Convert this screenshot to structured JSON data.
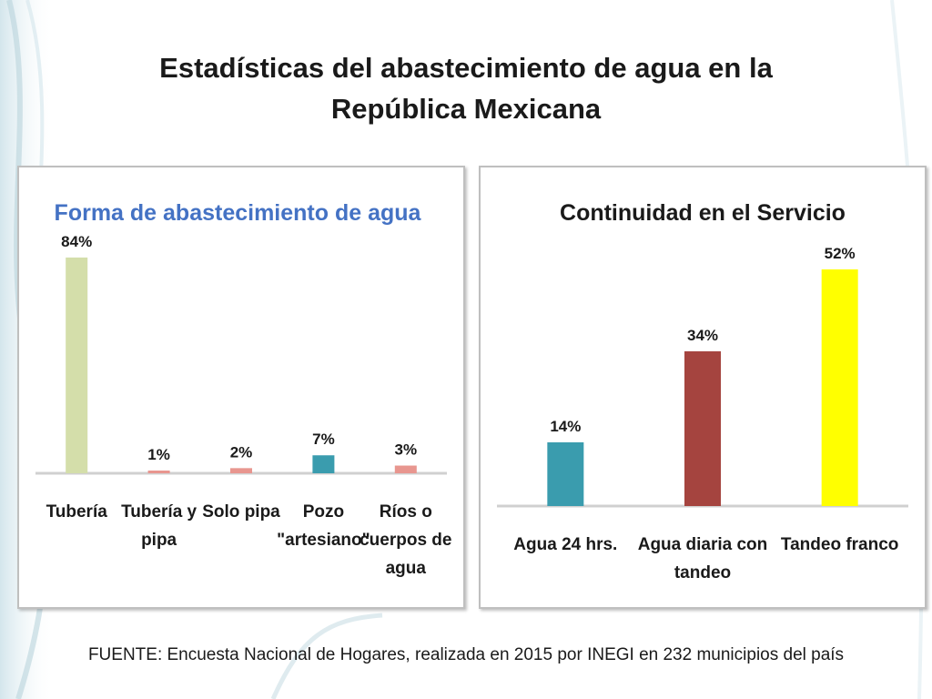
{
  "slide": {
    "title_line1": "Estadísticas del abastecimiento de agua en la",
    "title_line2": "República Mexicana",
    "source": "FUENTE: Encuesta Nacional de Hogares, realizada en 2015 por INEGI en 232 municipios del país"
  },
  "chart_data": [
    {
      "type": "bar",
      "title": "Forma de abastecimiento de agua",
      "title_color": "#4472c4",
      "categories": [
        [
          "Tubería"
        ],
        [
          "Tubería y",
          "pipa"
        ],
        [
          "Solo pipa"
        ],
        [
          "Pozo",
          "\"artesiano\""
        ],
        [
          "Ríos o",
          "cuerpos de",
          "agua"
        ]
      ],
      "values": [
        84,
        1,
        2,
        7,
        3
      ],
      "value_labels": [
        "84%",
        "1%",
        "2%",
        "7%",
        "3%"
      ],
      "colors": [
        "#d4deaa",
        "#e8968f",
        "#e8968f",
        "#3a9cae",
        "#e8968f"
      ],
      "ylim": [
        0,
        90
      ],
      "grid": false,
      "legend": "none"
    },
    {
      "type": "bar",
      "title": "Continuidad en el Servicio",
      "categories": [
        [
          "Agua 24 hrs."
        ],
        [
          "Agua diaria con",
          "tandeo"
        ],
        [
          "Tandeo franco"
        ]
      ],
      "values": [
        14,
        34,
        52
      ],
      "value_labels": [
        "14%",
        "34%",
        "52%"
      ],
      "colors": [
        "#3a9cae",
        "#a5443f",
        "#ffff00"
      ],
      "ylim": [
        0,
        60
      ],
      "grid": false,
      "legend": "none"
    }
  ]
}
